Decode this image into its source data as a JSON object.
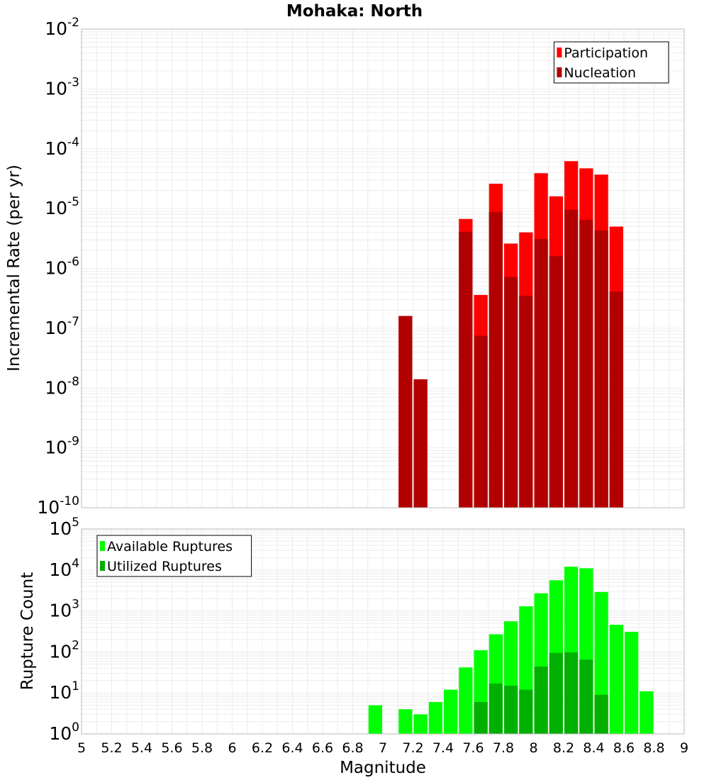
{
  "chart_data": [
    {
      "type": "bar",
      "title": "Mohaka: North",
      "xlabel": "",
      "ylabel": "Incremental Rate (per yr)",
      "xlim": [
        5,
        9
      ],
      "ylim": [
        1e-10,
        0.01
      ],
      "y_scale": "log",
      "grid": true,
      "legend_position": "top-right",
      "bar_width": 0.1,
      "series": [
        {
          "name": "Participation",
          "color": "#ff0000",
          "x": [
            7.15,
            7.25,
            7.55,
            7.65,
            7.75,
            7.85,
            7.95,
            8.05,
            8.15,
            8.25,
            8.35,
            8.45,
            8.55
          ],
          "values": [
            1.6e-07,
            1.4e-08,
            6.7e-06,
            3.6e-07,
            2.6e-05,
            2.6e-06,
            4e-06,
            3.9e-05,
            1.6e-05,
            6.2e-05,
            4.7e-05,
            3.7e-05,
            5e-06
          ]
        },
        {
          "name": "Nucleation",
          "color": "#b20000",
          "x": [
            7.15,
            7.25,
            7.55,
            7.65,
            7.75,
            7.85,
            7.95,
            8.05,
            8.15,
            8.25,
            8.35,
            8.45,
            8.55
          ],
          "values": [
            1.6e-07,
            1.4e-08,
            4.1e-06,
            7.5e-08,
            8.8e-06,
            7.2e-07,
            3.5e-07,
            3.1e-06,
            1.6e-06,
            9.6e-06,
            6.5e-06,
            4.3e-06,
            4.1e-07
          ]
        }
      ]
    },
    {
      "type": "bar",
      "title": "",
      "xlabel": "Magnitude",
      "ylabel": "Rupture Count",
      "xlim": [
        5,
        9
      ],
      "ylim": [
        1,
        100000
      ],
      "y_scale": "log",
      "grid": true,
      "legend_position": "top-left",
      "bar_width": 0.1,
      "x_ticks": [
        "5",
        "5.2",
        "5.4",
        "5.6",
        "5.8",
        "6",
        "6.2",
        "6.4",
        "6.6",
        "6.8",
        "7",
        "7.2",
        "7.4",
        "7.6",
        "7.8",
        "8",
        "8.2",
        "8.4",
        "8.6",
        "8.8",
        "9"
      ],
      "series": [
        {
          "name": "Available Ruptures",
          "color": "#00ff00",
          "x": [
            6.95,
            7.15,
            7.25,
            7.35,
            7.45,
            7.55,
            7.65,
            7.75,
            7.85,
            7.95,
            8.05,
            8.15,
            8.25,
            8.35,
            8.45,
            8.55,
            8.65,
            8.75
          ],
          "values": [
            5,
            4,
            3,
            6,
            12,
            42,
            110,
            270,
            560,
            1300,
            2700,
            5600,
            12000,
            11000,
            2900,
            460,
            310,
            11
          ]
        },
        {
          "name": "Utilized Ruptures",
          "color": "#00b000",
          "x": [
            7.15,
            7.25,
            7.55,
            7.65,
            7.75,
            7.85,
            7.95,
            8.05,
            8.15,
            8.25,
            8.35,
            8.45,
            8.55
          ],
          "values": [
            1,
            1,
            1,
            6,
            17,
            15,
            12,
            44,
            95,
            97,
            65,
            9,
            1
          ]
        }
      ]
    }
  ]
}
